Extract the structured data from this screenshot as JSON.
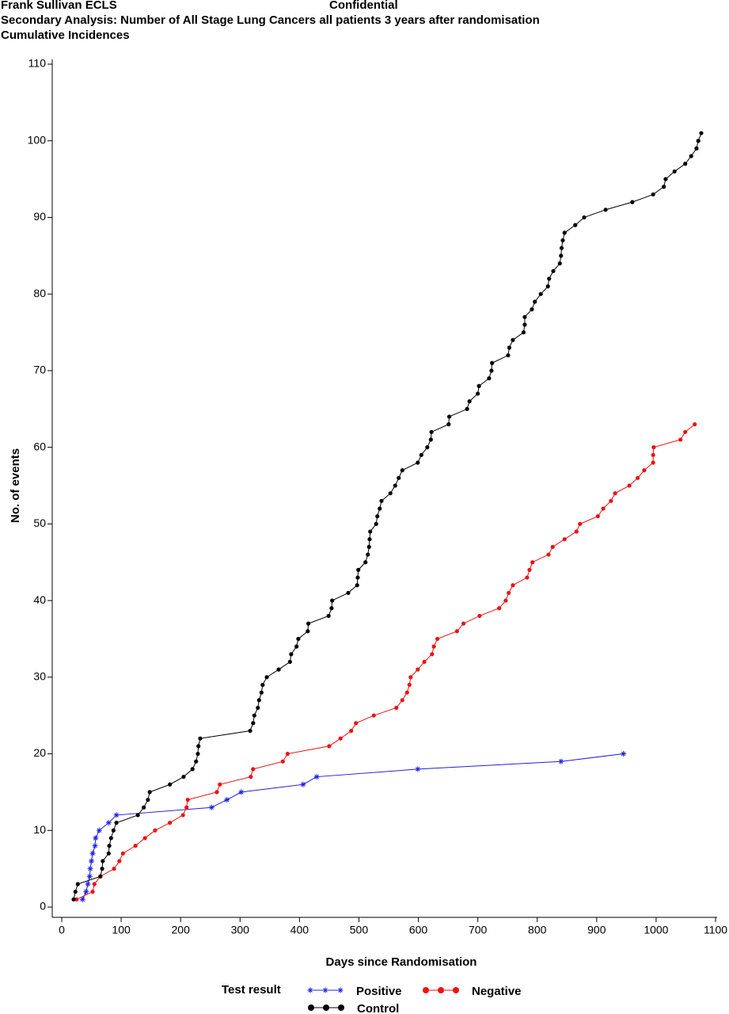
{
  "header": {
    "left": "Frank Sullivan ECLS",
    "center": "Confidential",
    "line2": "Secondary Analysis: Number of All Stage Lung Cancers all patients 3 years after randomisation",
    "line3": "Cumulative Incidences"
  },
  "chart_data": {
    "type": "line",
    "x_label": "Days since Randomisation",
    "y_label": "No. of events",
    "xlim": [
      0,
      1100
    ],
    "ylim": [
      0,
      110
    ],
    "xticks": [
      0,
      100,
      200,
      300,
      400,
      500,
      600,
      700,
      800,
      900,
      1000,
      1100
    ],
    "yticks": [
      0,
      10,
      20,
      30,
      40,
      50,
      60,
      70,
      80,
      90,
      100,
      110
    ],
    "legend_title": "Test result",
    "series": [
      {
        "name": "Positive",
        "color": "#2020e0",
        "marker": "star",
        "x": [
          35,
          41,
          44,
          47,
          48,
          50,
          52,
          56,
          57,
          63,
          79,
          92,
          252,
          278,
          302,
          406,
          429,
          599,
          840,
          945
        ],
        "values": [
          1,
          2,
          3,
          4,
          5,
          6,
          7,
          8,
          9,
          10,
          11,
          12,
          13,
          14,
          15,
          16,
          17,
          18,
          19,
          20
        ]
      },
      {
        "name": "Negative",
        "color": "#ee1111",
        "marker": "dot",
        "x": [
          25,
          52,
          55,
          65,
          88,
          97,
          103,
          124,
          140,
          157,
          182,
          204,
          210,
          212,
          261,
          266,
          318,
          322,
          372,
          380,
          450,
          469,
          487,
          495,
          525,
          563,
          573,
          581,
          585,
          587,
          599,
          610,
          623,
          626,
          632,
          665,
          676,
          703,
          736,
          747,
          752,
          759,
          783,
          787,
          792,
          819,
          826,
          846,
          866,
          872,
          902,
          911,
          924,
          931,
          955,
          969,
          980,
          995,
          995,
          996,
          1041,
          1049,
          1065
        ],
        "values": [
          1,
          2,
          3,
          4,
          5,
          6,
          7,
          8,
          9,
          10,
          11,
          12,
          13,
          14,
          15,
          16,
          17,
          18,
          19,
          20,
          21,
          22,
          23,
          24,
          25,
          26,
          27,
          28,
          29,
          30,
          31,
          32,
          33,
          34,
          35,
          36,
          37,
          38,
          39,
          40,
          41,
          42,
          43,
          44,
          45,
          46,
          47,
          48,
          49,
          50,
          51,
          52,
          53,
          54,
          55,
          56,
          57,
          58,
          59,
          60,
          61,
          62,
          63
        ]
      },
      {
        "name": "Control",
        "color": "#000000",
        "marker": "dot",
        "x": [
          20,
          23,
          27,
          65,
          68,
          69,
          79,
          80,
          83,
          87,
          92,
          128,
          138,
          145,
          148,
          182,
          205,
          220,
          226,
          229,
          230,
          233,
          317,
          322,
          324,
          330,
          332,
          336,
          338,
          345,
          365,
          384,
          386,
          395,
          398,
          414,
          415,
          449,
          454,
          455,
          482,
          497,
          498,
          499,
          511,
          515,
          517,
          518,
          519,
          529,
          531,
          535,
          538,
          553,
          561,
          567,
          573,
          599,
          605,
          615,
          621,
          622,
          651,
          652,
          682,
          686,
          700,
          702,
          719,
          723,
          724,
          751,
          753,
          759,
          777,
          779,
          779,
          791,
          796,
          806,
          818,
          820,
          827,
          838,
          840,
          841,
          843,
          846,
          864,
          879,
          915,
          960,
          995,
          1013,
          1016,
          1031,
          1049,
          1059,
          1068,
          1071,
          1076
        ],
        "values": [
          1,
          2,
          3,
          4,
          5,
          6,
          7,
          8,
          9,
          10,
          11,
          12,
          13,
          14,
          15,
          16,
          17,
          18,
          19,
          20,
          21,
          22,
          23,
          24,
          25,
          26,
          27,
          28,
          29,
          30,
          31,
          32,
          33,
          34,
          35,
          36,
          37,
          38,
          39,
          40,
          41,
          42,
          43,
          44,
          45,
          46,
          47,
          48,
          49,
          50,
          51,
          52,
          53,
          54,
          55,
          56,
          57,
          58,
          59,
          60,
          61,
          62,
          63,
          64,
          65,
          66,
          67,
          68,
          69,
          70,
          71,
          72,
          73,
          74,
          75,
          76,
          77,
          78,
          79,
          80,
          81,
          82,
          83,
          84,
          85,
          86,
          87,
          88,
          89,
          90,
          91,
          92,
          93,
          94,
          95,
          96,
          97,
          98,
          99,
          100,
          101
        ]
      }
    ]
  }
}
